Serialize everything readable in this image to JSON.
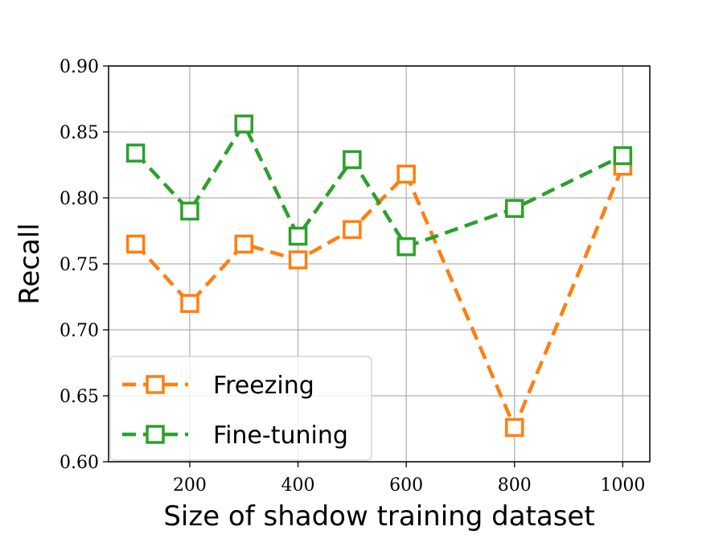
{
  "chart_data": {
    "type": "line",
    "xlabel": "Size of shadow training dataset",
    "ylabel": "Recall",
    "xlim": [
      50,
      1050
    ],
    "ylim": [
      0.6,
      0.9
    ],
    "x_ticks": [
      {
        "value": 200,
        "label": "200"
      },
      {
        "value": 400,
        "label": "400"
      },
      {
        "value": 600,
        "label": "600"
      },
      {
        "value": 800,
        "label": "800"
      },
      {
        "value": 1000,
        "label": "1000"
      }
    ],
    "y_ticks": [
      {
        "value": 0.6,
        "label": "0.60"
      },
      {
        "value": 0.65,
        "label": "0.65"
      },
      {
        "value": 0.7,
        "label": "0.70"
      },
      {
        "value": 0.75,
        "label": "0.75"
      },
      {
        "value": 0.8,
        "label": "0.80"
      },
      {
        "value": 0.85,
        "label": "0.85"
      },
      {
        "value": 0.9,
        "label": "0.90"
      }
    ],
    "grid": true,
    "legend_position": "lower-left",
    "series": [
      {
        "name": "Freezing",
        "color": "#ff7f0e",
        "marker": "square-open",
        "line_style": "dashed",
        "x": [
          100,
          200,
          300,
          400,
          500,
          600,
          800,
          1000
        ],
        "y": [
          0.765,
          0.72,
          0.765,
          0.753,
          0.776,
          0.818,
          0.626,
          0.824
        ]
      },
      {
        "name": "Fine-tuning",
        "color": "#2ca02c",
        "marker": "square-open",
        "line_style": "dashed",
        "x": [
          100,
          200,
          300,
          400,
          500,
          600,
          800,
          1000
        ],
        "y": [
          0.834,
          0.79,
          0.856,
          0.771,
          0.829,
          0.763,
          0.792,
          0.832
        ]
      }
    ]
  }
}
